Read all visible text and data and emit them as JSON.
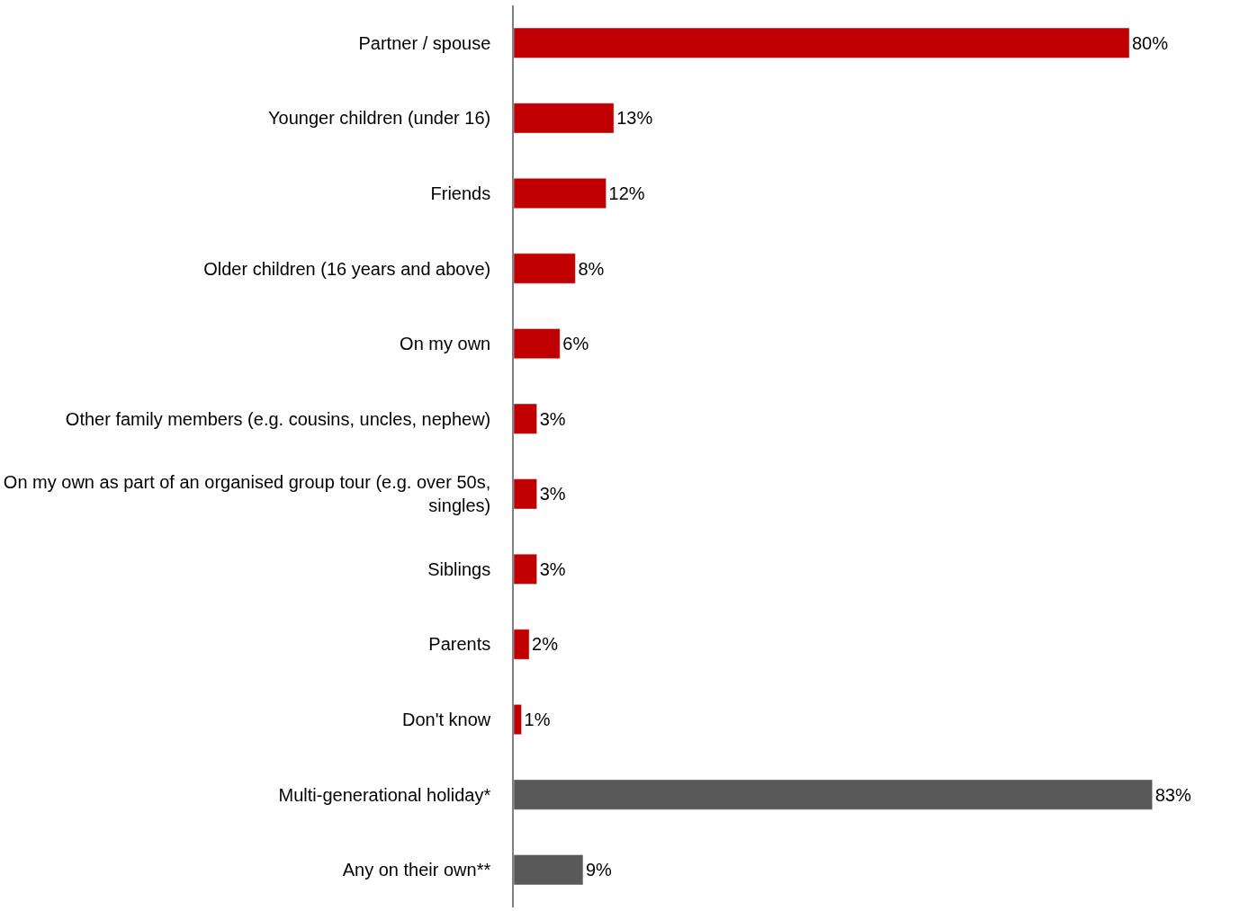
{
  "chart_data": {
    "type": "bar",
    "orientation": "horizontal",
    "categories": [
      "Partner / spouse",
      "Younger children (under 16)",
      "Friends",
      "Older children (16 years and above)",
      "On my own",
      "Other family members (e.g. cousins, uncles, nephew)",
      "On my own as part of an organised group tour (e.g. over 50s, singles)",
      "Siblings",
      "Parents",
      "Don't know",
      "Multi-generational holiday*",
      "Any on their own**"
    ],
    "values": [
      80,
      13,
      12,
      8,
      6,
      3,
      3,
      3,
      2,
      1,
      83,
      9
    ],
    "value_labels": [
      "80%",
      "13%",
      "12%",
      "8%",
      "6%",
      "3%",
      "3%",
      "3%",
      "2%",
      "1%",
      "83%",
      "9%"
    ],
    "colors": [
      "#c00000",
      "#c00000",
      "#c00000",
      "#c00000",
      "#c00000",
      "#c00000",
      "#c00000",
      "#c00000",
      "#c00000",
      "#c00000",
      "#595959",
      "#595959"
    ],
    "legend": false
  }
}
